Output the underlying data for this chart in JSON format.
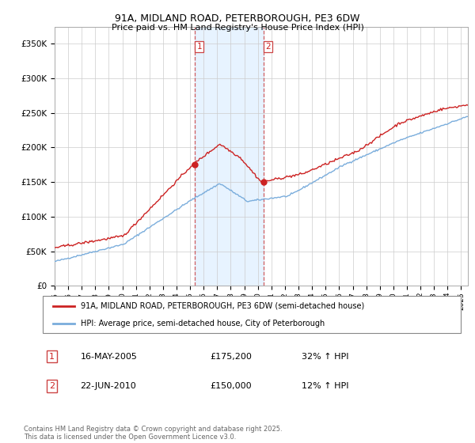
{
  "title": "91A, MIDLAND ROAD, PETERBOROUGH, PE3 6DW",
  "subtitle": "Price paid vs. HM Land Registry's House Price Index (HPI)",
  "legend_line1": "91A, MIDLAND ROAD, PETERBOROUGH, PE3 6DW (semi-detached house)",
  "legend_line2": "HPI: Average price, semi-detached house, City of Peterborough",
  "annotation1_label": "1",
  "annotation1_date": "16-MAY-2005",
  "annotation1_price": "£175,200",
  "annotation1_hpi": "32% ↑ HPI",
  "annotation2_label": "2",
  "annotation2_date": "22-JUN-2010",
  "annotation2_price": "£150,000",
  "annotation2_hpi": "12% ↑ HPI",
  "footer": "Contains HM Land Registry data © Crown copyright and database right 2025.\nThis data is licensed under the Open Government Licence v3.0.",
  "hpi_color": "#7aaddc",
  "price_color": "#cc2222",
  "vline_color": "#cc4444",
  "shade_color": "#ddeeff",
  "ylim": [
    0,
    375000
  ],
  "yticks": [
    0,
    50000,
    100000,
    150000,
    200000,
    250000,
    300000,
    350000
  ],
  "start_year": 1995,
  "end_year": 2025
}
